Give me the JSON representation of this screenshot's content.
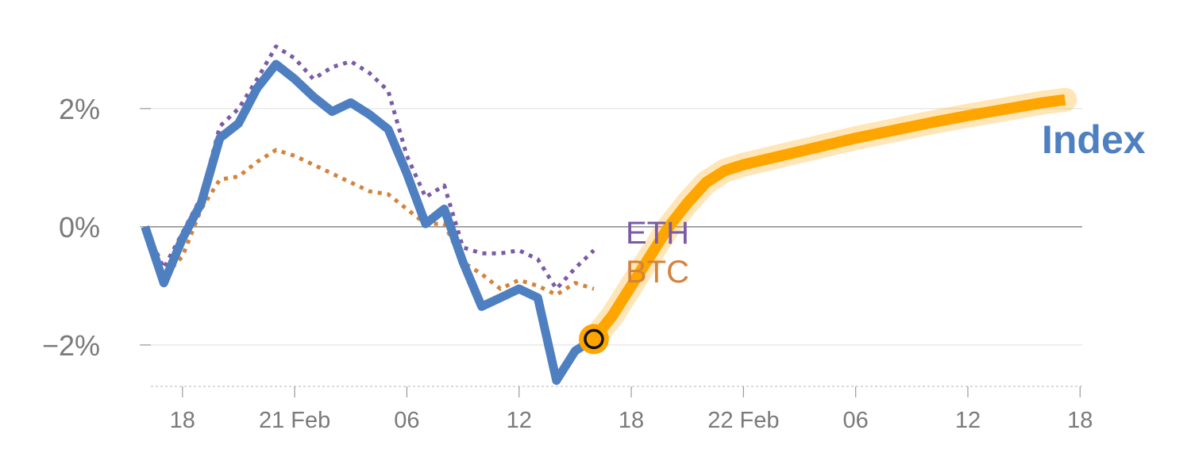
{
  "chart_data": {
    "type": "line",
    "xlabel": "",
    "ylabel": "",
    "x_unit": "hours since 17 Feb 18:00",
    "xlim": [
      -2.2,
      48.2
    ],
    "ylim": [
      -2.7,
      3.3
    ],
    "y_ticks": [
      {
        "value": 2,
        "label": "2%"
      },
      {
        "value": 0,
        "label": "0%"
      },
      {
        "value": -2,
        "label": "−2%"
      }
    ],
    "x_ticks": [
      {
        "value": 0,
        "label": "18"
      },
      {
        "value": 6,
        "label": "21 Feb"
      },
      {
        "value": 12,
        "label": "06"
      },
      {
        "value": 18,
        "label": "12"
      },
      {
        "value": 24,
        "label": "18"
      },
      {
        "value": 30,
        "label": "22 Feb"
      },
      {
        "value": 36,
        "label": "06"
      },
      {
        "value": 42,
        "label": "12"
      },
      {
        "value": 48,
        "label": "18"
      }
    ],
    "series": [
      {
        "name": "Index",
        "color": "#4e7fc0",
        "style": "solid",
        "x": [
          -2,
          -1,
          0,
          1,
          2,
          3,
          4,
          5,
          6,
          7,
          8,
          9,
          10,
          11,
          12,
          13,
          14,
          15,
          16,
          17,
          18,
          19,
          20,
          21,
          22
        ],
        "values": [
          0.0,
          -0.95,
          -0.2,
          0.4,
          1.5,
          1.75,
          2.35,
          2.75,
          2.5,
          2.2,
          1.95,
          2.1,
          1.9,
          1.65,
          0.9,
          0.05,
          0.3,
          -0.6,
          -1.35,
          -1.2,
          -1.05,
          -1.2,
          -2.6,
          -2.1,
          -1.9
        ]
      },
      {
        "name": "ETH",
        "color": "#7b5aa6",
        "style": "dotted",
        "x": [
          -2,
          -1,
          0,
          1,
          2,
          3,
          4,
          5,
          6,
          7,
          8,
          9,
          10,
          11,
          12,
          13,
          14,
          15,
          16,
          17,
          18,
          19,
          20,
          21,
          22
        ],
        "values": [
          0.0,
          -0.7,
          -0.1,
          0.5,
          1.7,
          2.0,
          2.5,
          3.05,
          2.85,
          2.5,
          2.7,
          2.8,
          2.6,
          2.3,
          1.2,
          0.5,
          0.7,
          -0.35,
          -0.45,
          -0.45,
          -0.4,
          -0.55,
          -1.05,
          -0.7,
          -0.4
        ]
      },
      {
        "name": "BTC",
        "color": "#d4833a",
        "style": "dotted",
        "x": [
          -2,
          -1,
          0,
          1,
          2,
          3,
          4,
          5,
          6,
          7,
          8,
          9,
          10,
          11,
          12,
          13,
          14,
          15,
          16,
          17,
          18,
          19,
          20,
          21,
          22
        ],
        "values": [
          0.0,
          -0.85,
          -0.5,
          0.3,
          0.8,
          0.85,
          1.1,
          1.3,
          1.2,
          1.05,
          0.9,
          0.75,
          0.6,
          0.55,
          0.3,
          0.05,
          0.05,
          -0.6,
          -0.8,
          -1.05,
          -0.9,
          -1.0,
          -1.15,
          -0.95,
          -1.05
        ]
      },
      {
        "name": "Index forecast",
        "color": "#ffa500",
        "style": "thick",
        "x": [
          22,
          23,
          24,
          25,
          26,
          27,
          28,
          29,
          30,
          32,
          34,
          36,
          38,
          40,
          42,
          44,
          46,
          47.2
        ],
        "values": [
          -1.9,
          -1.5,
          -1.0,
          -0.5,
          0.0,
          0.4,
          0.75,
          0.95,
          1.05,
          1.2,
          1.35,
          1.5,
          1.63,
          1.76,
          1.88,
          1.99,
          2.1,
          2.15
        ]
      }
    ],
    "marker": {
      "x": 22,
      "value": -1.9
    },
    "labels": {
      "index": "Index",
      "eth": "ETH",
      "btc": "BTC"
    }
  }
}
